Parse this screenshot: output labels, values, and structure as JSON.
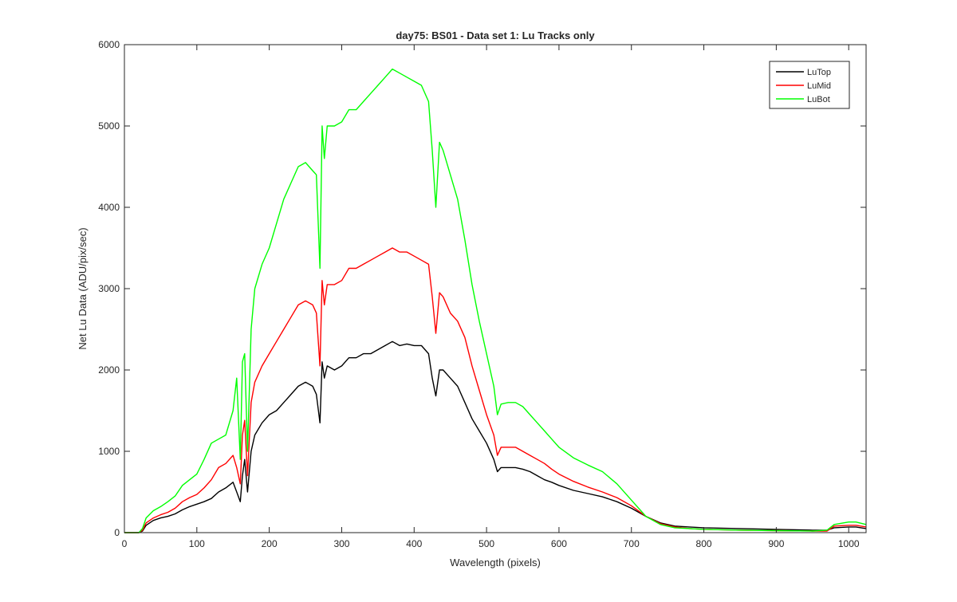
{
  "chart_data": {
    "type": "line",
    "title": "day75: BS01 - Data set 1: Lu Tracks only",
    "xlabel": "Wavelength (pixels)",
    "ylabel": "Net Lu Data (ADU/pix/sec)",
    "xlim": [
      0,
      1024
    ],
    "ylim": [
      0,
      6000
    ],
    "grid": false,
    "legend_position": "top-right",
    "x_ticks": [
      0,
      100,
      200,
      300,
      400,
      500,
      600,
      700,
      800,
      900,
      1000
    ],
    "x_tick_labels": [
      "0",
      "100",
      "200",
      "300",
      "400",
      "500",
      "600",
      "700",
      "800",
      "900",
      "1000"
    ],
    "y_ticks": [
      0,
      1000,
      2000,
      3000,
      4000,
      5000,
      6000
    ],
    "y_tick_labels": [
      "0",
      "1000",
      "2000",
      "3000",
      "4000",
      "5000",
      "6000"
    ],
    "x": [
      0,
      20,
      25,
      30,
      40,
      50,
      60,
      70,
      80,
      90,
      100,
      110,
      120,
      130,
      140,
      150,
      155,
      160,
      163,
      166,
      170,
      175,
      180,
      190,
      200,
      210,
      220,
      230,
      240,
      250,
      260,
      265,
      270,
      273,
      276,
      280,
      290,
      300,
      310,
      320,
      330,
      340,
      350,
      360,
      370,
      380,
      390,
      400,
      410,
      420,
      425,
      430,
      435,
      440,
      450,
      460,
      470,
      480,
      490,
      500,
      510,
      515,
      520,
      530,
      540,
      550,
      560,
      570,
      580,
      590,
      600,
      620,
      640,
      660,
      680,
      700,
      720,
      740,
      760,
      780,
      800,
      850,
      900,
      950,
      970,
      980,
      1000,
      1010,
      1024
    ],
    "series": [
      {
        "name": "LuTop",
        "color": "#000000",
        "values": [
          0,
          0,
          20,
          90,
          150,
          180,
          200,
          230,
          280,
          320,
          350,
          380,
          420,
          500,
          550,
          620,
          500,
          380,
          700,
          900,
          500,
          1000,
          1200,
          1350,
          1450,
          1500,
          1600,
          1700,
          1800,
          1850,
          1800,
          1700,
          1350,
          2100,
          1900,
          2050,
          2000,
          2050,
          2150,
          2150,
          2200,
          2200,
          2250,
          2300,
          2350,
          2300,
          2320,
          2300,
          2300,
          2200,
          1900,
          1680,
          2000,
          2000,
          1900,
          1800,
          1600,
          1400,
          1250,
          1100,
          900,
          750,
          800,
          800,
          800,
          780,
          750,
          700,
          650,
          620,
          580,
          520,
          480,
          440,
          380,
          300,
          200,
          120,
          80,
          70,
          60,
          50,
          40,
          30,
          30,
          60,
          70,
          70,
          50
        ]
      },
      {
        "name": "LuMid",
        "color": "#ff0000",
        "values": [
          0,
          0,
          30,
          120,
          180,
          220,
          250,
          300,
          380,
          430,
          470,
          550,
          650,
          800,
          850,
          950,
          800,
          600,
          1200,
          1380,
          700,
          1600,
          1850,
          2050,
          2200,
          2350,
          2500,
          2650,
          2800,
          2850,
          2800,
          2700,
          2050,
          3100,
          2800,
          3050,
          3050,
          3100,
          3250,
          3250,
          3300,
          3350,
          3400,
          3450,
          3500,
          3450,
          3450,
          3400,
          3350,
          3300,
          2900,
          2450,
          2950,
          2900,
          2700,
          2600,
          2400,
          2050,
          1750,
          1450,
          1200,
          950,
          1050,
          1050,
          1050,
          1000,
          950,
          900,
          850,
          780,
          720,
          630,
          560,
          500,
          430,
          330,
          200,
          110,
          70,
          50,
          40,
          30,
          25,
          20,
          20,
          80,
          90,
          90,
          70
        ]
      },
      {
        "name": "LuBot",
        "color": "#00ff00",
        "values": [
          0,
          0,
          50,
          180,
          270,
          320,
          380,
          450,
          580,
          650,
          720,
          900,
          1100,
          1150,
          1200,
          1500,
          1900,
          900,
          2100,
          2200,
          1000,
          2500,
          3000,
          3300,
          3500,
          3800,
          4100,
          4300,
          4500,
          4550,
          4450,
          4400,
          3250,
          5000,
          4600,
          5000,
          5000,
          5050,
          5200,
          5200,
          5300,
          5400,
          5500,
          5600,
          5700,
          5650,
          5600,
          5550,
          5500,
          5300,
          4700,
          4000,
          4800,
          4700,
          4400,
          4100,
          3600,
          3050,
          2600,
          2200,
          1800,
          1450,
          1580,
          1600,
          1600,
          1550,
          1450,
          1350,
          1250,
          1150,
          1050,
          920,
          830,
          750,
          600,
          400,
          200,
          100,
          60,
          50,
          40,
          30,
          25,
          20,
          30,
          100,
          130,
          130,
          100
        ]
      }
    ]
  }
}
